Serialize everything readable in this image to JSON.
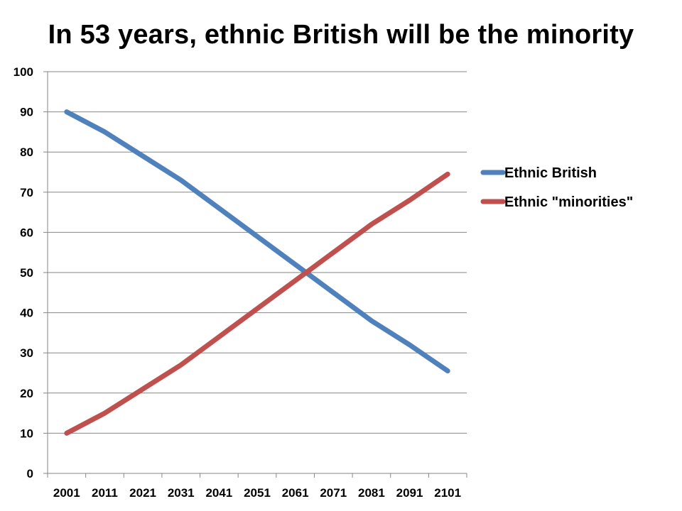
{
  "chart_data": {
    "type": "line",
    "title": "In 53 years, ethnic British will be the minority",
    "xlabel": "",
    "ylabel": "",
    "categories": [
      "2001",
      "2011",
      "2021",
      "2031",
      "2041",
      "2051",
      "2061",
      "2071",
      "2081",
      "2091",
      "2101"
    ],
    "ylim": [
      0,
      100
    ],
    "yticks": [
      0,
      10,
      20,
      30,
      40,
      50,
      60,
      70,
      80,
      90,
      100
    ],
    "grid": true,
    "legend_position": "right",
    "series": [
      {
        "name": "Ethnic British",
        "color": "#4F81BD",
        "values": [
          90,
          85,
          79,
          73,
          66,
          59,
          52,
          45,
          38,
          32,
          25.5
        ]
      },
      {
        "name": "Ethnic \"minorities\"",
        "color": "#C0504D",
        "values": [
          10,
          15,
          21,
          27,
          34,
          41,
          48,
          55,
          62,
          68,
          74.5
        ]
      }
    ]
  }
}
